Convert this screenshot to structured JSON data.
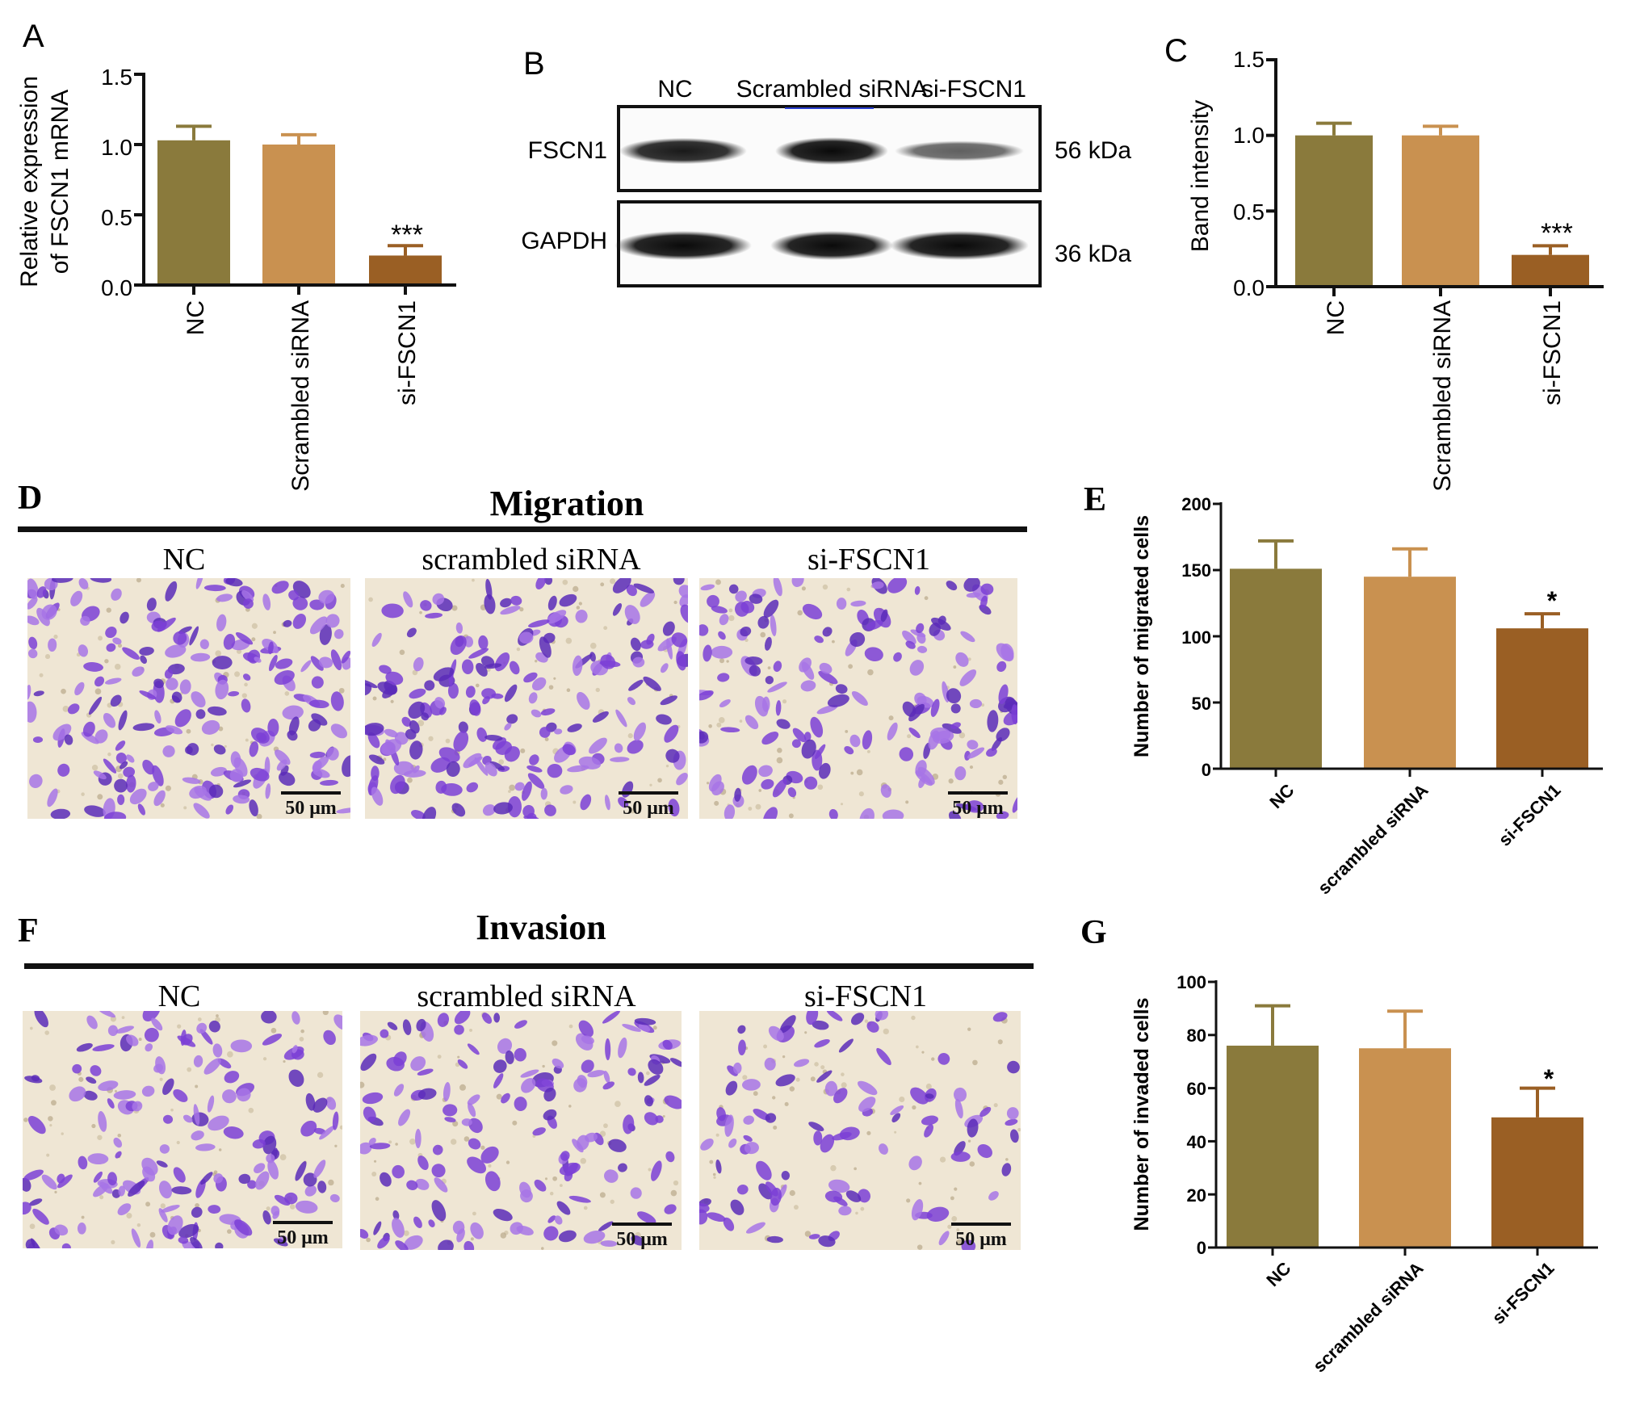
{
  "colors": {
    "nc": "#8a7a3c",
    "scrambled": "#c99150",
    "si": "#9a5f24",
    "stain": "#7b3fd6",
    "background_field": "#efe6d4"
  },
  "panel_a": {
    "letter": "A",
    "ylabel_line1": "Relative expression",
    "ylabel_line2": "of FSCN1 mRNA",
    "tick_labels": [
      "0.0",
      "0.5",
      "1.0",
      "1.5"
    ],
    "categories": [
      "NC",
      "Scrambled siRNA",
      "si-FSCN1"
    ],
    "significance": "***"
  },
  "panel_b": {
    "letter": "B",
    "lane_labels": [
      "NC",
      "Scrambled siRNA",
      "si-FSCN1"
    ],
    "row_labels": [
      "FSCN1",
      "GAPDH"
    ],
    "sizes": [
      "56 kDa",
      "36 kDa"
    ],
    "band_intensity_fscn1": [
      0.9,
      1.0,
      0.45
    ],
    "band_intensity_gapdh": [
      1.0,
      1.0,
      1.0
    ]
  },
  "panel_c": {
    "letter": "C",
    "ylabel": "Band intensity",
    "tick_labels": [
      "0.0",
      "0.5",
      "1.0",
      "1.5"
    ],
    "categories": [
      "NC",
      "Scrambled siRNA",
      "si-FSCN1"
    ],
    "significance": "***"
  },
  "panel_d": {
    "letter": "D",
    "title": "Migration",
    "image_labels": [
      "NC",
      "scrambled siRNA",
      "si-FSCN1"
    ],
    "scale_bar": "50 μm"
  },
  "panel_e": {
    "letter": "E",
    "ylabel": "Number of migrated cells",
    "tick_labels": [
      "0",
      "50",
      "100",
      "150",
      "200"
    ],
    "categories": [
      "NC",
      "scrambled siRNA",
      "si-FSCN1"
    ],
    "significance": "*"
  },
  "panel_f": {
    "letter": "F",
    "title": "Invasion",
    "image_labels": [
      "NC",
      "scrambled siRNA",
      "si-FSCN1"
    ],
    "scale_bar": "50 μm"
  },
  "panel_g": {
    "letter": "G",
    "ylabel": "Number of invaded cells",
    "tick_labels": [
      "0",
      "20",
      "40",
      "60",
      "80",
      "100"
    ],
    "categories": [
      "NC",
      "scrambled siRNA",
      "si-FSCN1"
    ],
    "significance": "*"
  },
  "chart_data": [
    {
      "panel": "A",
      "type": "bar",
      "categories": [
        "NC",
        "Scrambled siRNA",
        "si-FSCN1"
      ],
      "values": [
        1.03,
        1.0,
        0.21
      ],
      "errors": [
        0.1,
        0.07,
        0.07
      ],
      "ylabel": "Relative expression of FSCN1 mRNA",
      "ylim": [
        0,
        1.5
      ],
      "yticks": [
        0,
        0.5,
        1.0,
        1.5
      ]
    },
    {
      "panel": "C",
      "type": "bar",
      "categories": [
        "NC",
        "Scrambled siRNA",
        "si-FSCN1"
      ],
      "values": [
        1.0,
        1.0,
        0.21
      ],
      "errors": [
        0.08,
        0.06,
        0.06
      ],
      "ylabel": "Band intensity",
      "ylim": [
        0,
        1.5
      ],
      "yticks": [
        0,
        0.5,
        1.0,
        1.5
      ]
    },
    {
      "panel": "E",
      "type": "bar",
      "categories": [
        "NC",
        "scrambled siRNA",
        "si-FSCN1"
      ],
      "values": [
        151,
        145,
        106
      ],
      "errors": [
        21,
        21,
        11
      ],
      "ylabel": "Number of migrated cells",
      "ylim": [
        0,
        200
      ],
      "yticks": [
        0,
        50,
        100,
        150,
        200
      ]
    },
    {
      "panel": "G",
      "type": "bar",
      "categories": [
        "NC",
        "scrambled siRNA",
        "si-FSCN1"
      ],
      "values": [
        76,
        75,
        49
      ],
      "errors": [
        15,
        14,
        11
      ],
      "ylabel": "Number of invaded cells",
      "ylim": [
        0,
        100
      ],
      "yticks": [
        0,
        20,
        40,
        60,
        80,
        100
      ]
    }
  ]
}
